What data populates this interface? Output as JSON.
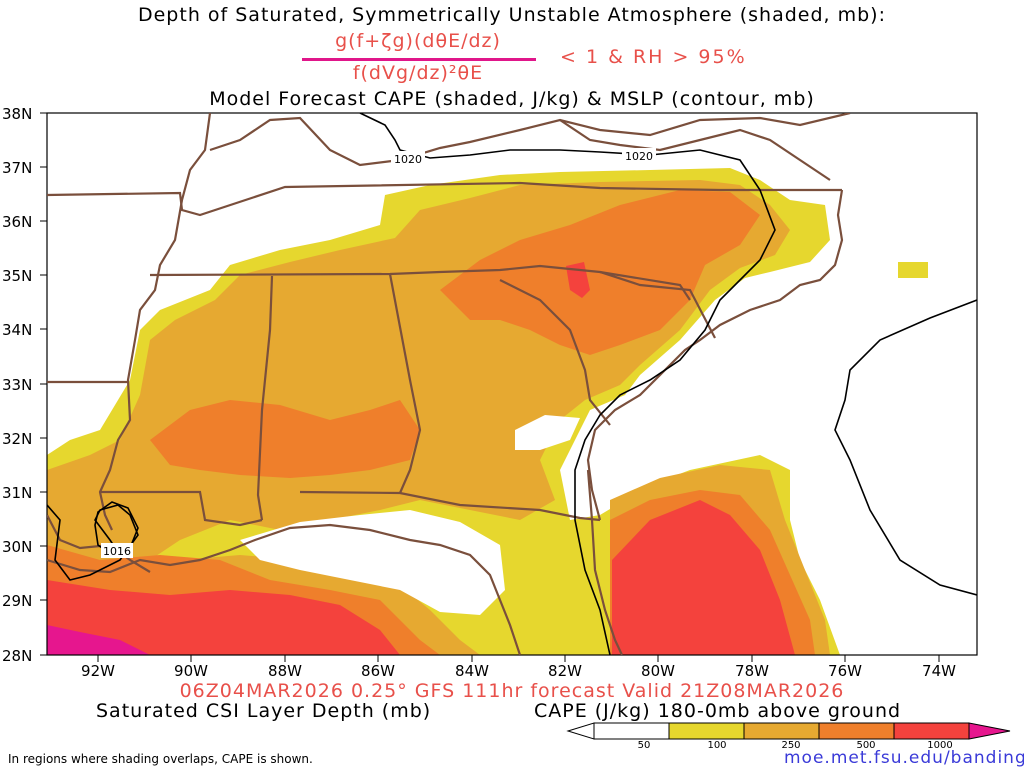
{
  "titles": {
    "line1": "Depth of Saturated, Symmetrically Unstable Atmosphere (shaded, mb):",
    "numerator": "g(f+ζg)(dθE/dz)",
    "denominator": "f(dVg/dz)²θE",
    "condition": "< 1 & RH > 95%",
    "line3": "Model Forecast CAPE (shaded, J/kg) & MSLP (contour, mb)"
  },
  "axes": {
    "lat_labels": [
      "38N",
      "37N",
      "36N",
      "35N",
      "34N",
      "33N",
      "32N",
      "31N",
      "30N",
      "29N",
      "28N"
    ],
    "lon_labels": [
      "92W",
      "90W",
      "88W",
      "86W",
      "84W",
      "82W",
      "80W",
      "78W",
      "76W",
      "74W"
    ]
  },
  "contours": {
    "labels": [
      "1020",
      "1020",
      "1016"
    ]
  },
  "footer": {
    "valid": "06Z04MAR2026 0.25° GFS 111hr forecast Valid 21Z08MAR2026",
    "csi_label": "Saturated CSI Layer Depth (mb)",
    "cape_label": "CAPE (J/kg) 180-0mb above ground",
    "note": "In regions where shading overlaps, CAPE is shown.",
    "url": "moe.met.fsu.edu/banding"
  },
  "colorbar": {
    "ticks": [
      "50",
      "100",
      "250",
      "500",
      "1000"
    ],
    "colors": [
      "#ffffff",
      "#e6d72e",
      "#e6a931",
      "#ef7f2b",
      "#f4423d",
      "#e6168e"
    ]
  },
  "colors": {
    "cape_50": "#e6d72e",
    "cape_100": "#e6a931",
    "cape_250": "#ef7f2b",
    "cape_500": "#f4423d",
    "cape_1000": "#e6168e",
    "borders": "#7a4f3c",
    "title_accent": "#e8504a",
    "url": "#3a3ad8"
  }
}
